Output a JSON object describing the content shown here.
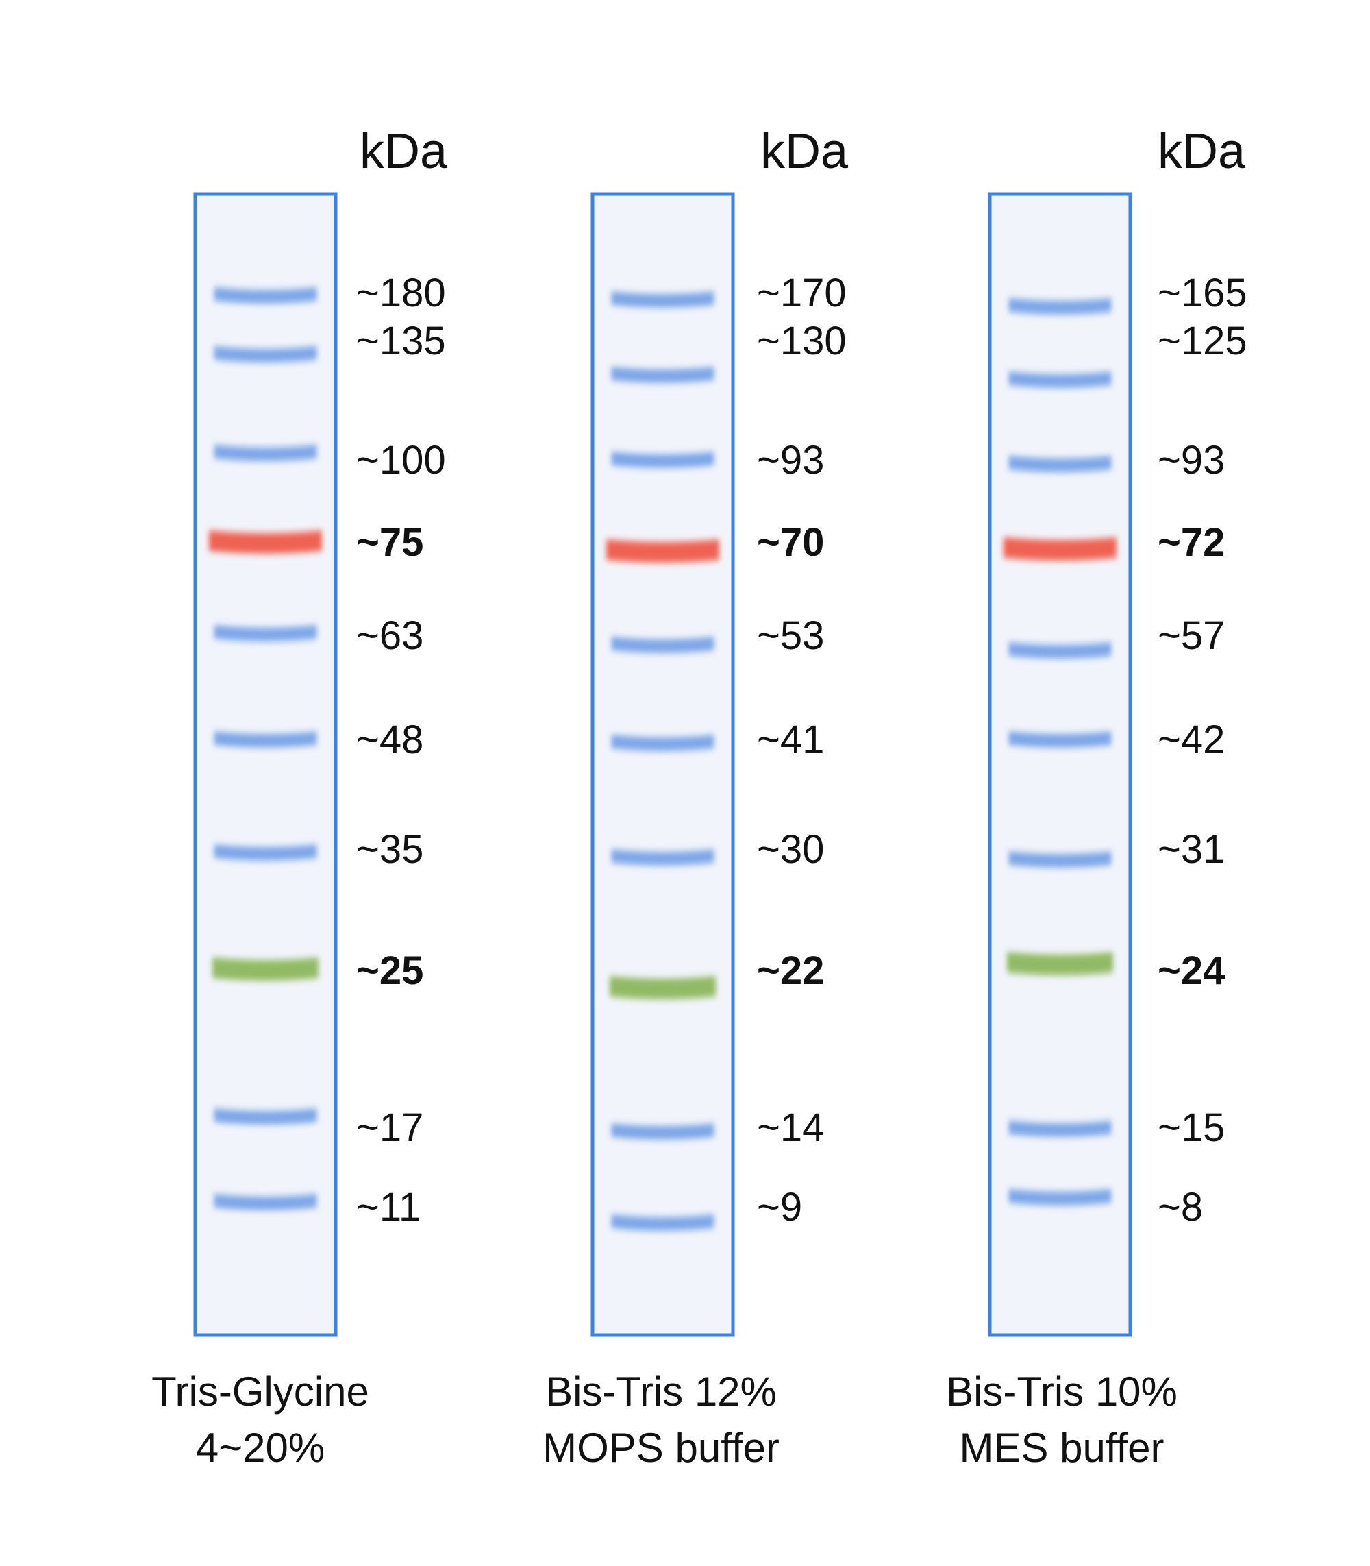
{
  "unit_label": "kDa",
  "colors": {
    "lane_border": "#3b82e6",
    "lane_fill": "#f1f4fa",
    "band_blue": "#6f9ee6",
    "band_red": "#f05a4a",
    "band_green": "#8bb85c"
  },
  "lanes": [
    {
      "caption_line1": "Tris-Glycine",
      "caption_line2": "4~20%",
      "markers": [
        {
          "label": "~180",
          "color": "blue",
          "bold": false
        },
        {
          "label": "~135",
          "color": "blue",
          "bold": false
        },
        {
          "label": "~100",
          "color": "blue",
          "bold": false
        },
        {
          "label": "~75",
          "color": "red",
          "bold": true
        },
        {
          "label": "~63",
          "color": "blue",
          "bold": false
        },
        {
          "label": "~48",
          "color": "blue",
          "bold": false
        },
        {
          "label": "~35",
          "color": "blue",
          "bold": false
        },
        {
          "label": "~25",
          "color": "green",
          "bold": true
        },
        {
          "label": "~17",
          "color": "blue",
          "bold": false
        },
        {
          "label": "~11",
          "color": "blue",
          "bold": false
        }
      ]
    },
    {
      "caption_line1": "Bis-Tris 12%",
      "caption_line2": "MOPS buffer",
      "markers": [
        {
          "label": "~170",
          "color": "blue",
          "bold": false
        },
        {
          "label": "~130",
          "color": "blue",
          "bold": false
        },
        {
          "label": "~93",
          "color": "blue",
          "bold": false
        },
        {
          "label": "~70",
          "color": "red",
          "bold": true
        },
        {
          "label": "~53",
          "color": "blue",
          "bold": false
        },
        {
          "label": "~41",
          "color": "blue",
          "bold": false
        },
        {
          "label": "~30",
          "color": "blue",
          "bold": false
        },
        {
          "label": "~22",
          "color": "green",
          "bold": true
        },
        {
          "label": "~14",
          "color": "blue",
          "bold": false
        },
        {
          "label": "~9",
          "color": "blue",
          "bold": false
        }
      ]
    },
    {
      "caption_line1": "Bis-Tris 10%",
      "caption_line2": "MES buffer",
      "markers": [
        {
          "label": "~165",
          "color": "blue",
          "bold": false
        },
        {
          "label": "~125",
          "color": "blue",
          "bold": false
        },
        {
          "label": "~93",
          "color": "blue",
          "bold": false
        },
        {
          "label": "~72",
          "color": "red",
          "bold": true
        },
        {
          "label": "~57",
          "color": "blue",
          "bold": false
        },
        {
          "label": "~42",
          "color": "blue",
          "bold": false
        },
        {
          "label": "~31",
          "color": "blue",
          "bold": false
        },
        {
          "label": "~24",
          "color": "green",
          "bold": true
        },
        {
          "label": "~15",
          "color": "blue",
          "bold": false
        },
        {
          "label": "~8",
          "color": "blue",
          "bold": false
        }
      ]
    }
  ]
}
